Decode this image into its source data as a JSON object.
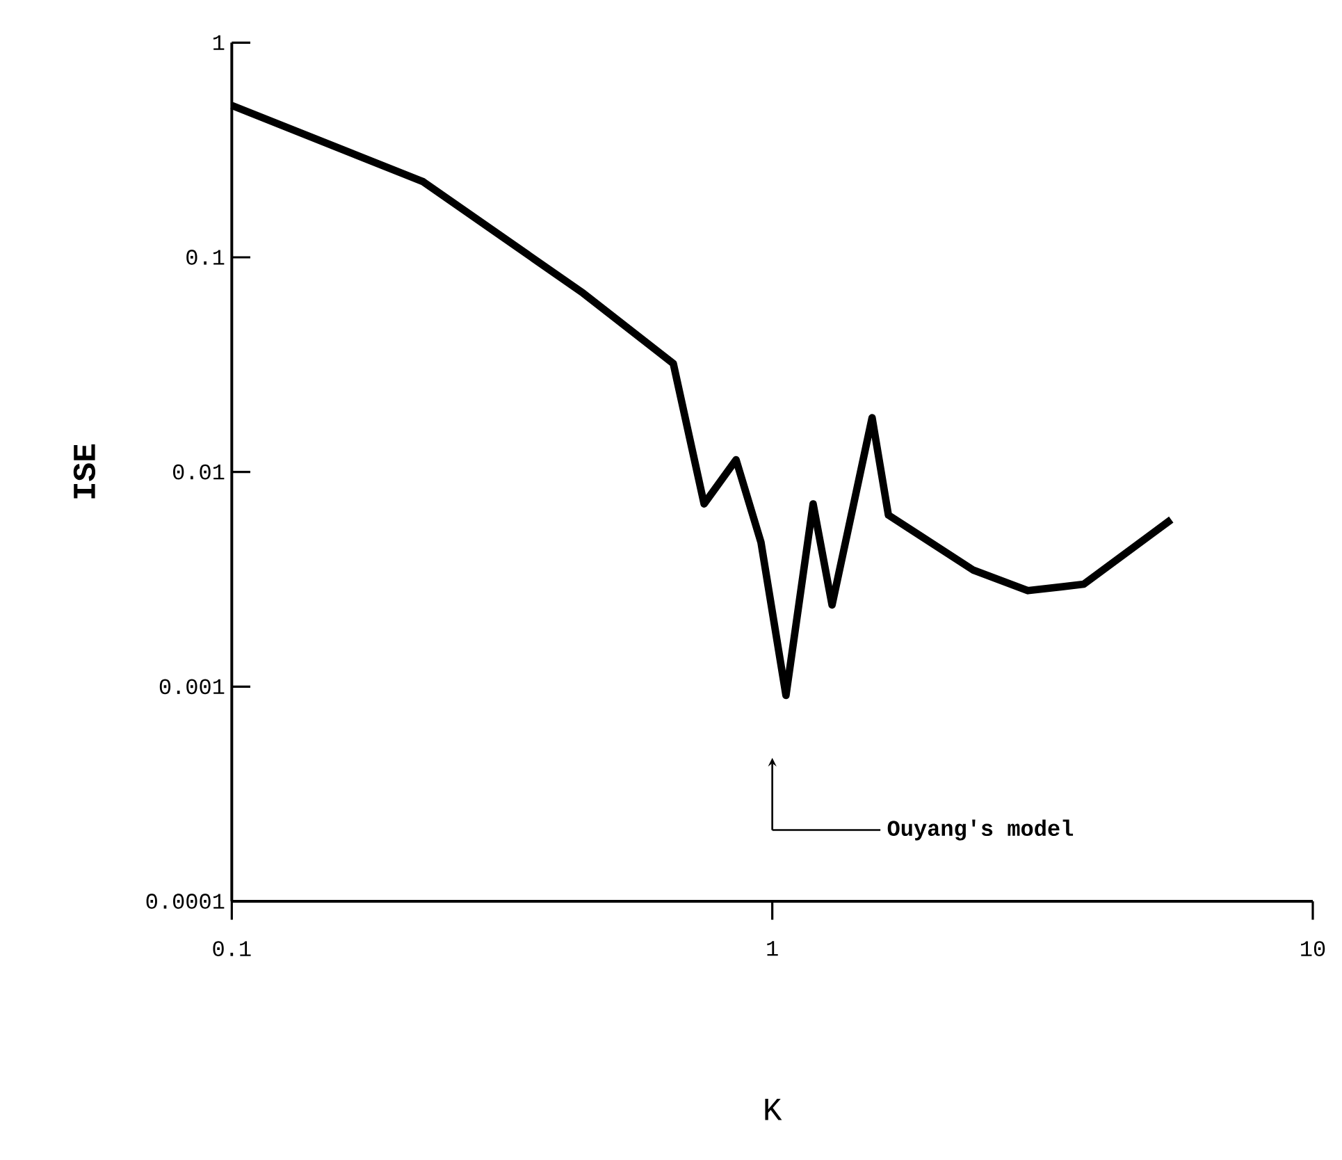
{
  "chart_data": {
    "type": "line",
    "xlabel": "K",
    "ylabel": "ISE",
    "log": "xy",
    "x": [
      0.1,
      0.226,
      0.447,
      0.656,
      0.748,
      0.857,
      0.953,
      1.06,
      1.19,
      1.29,
      1.53,
      1.64,
      2.35,
      2.97,
      3.77,
      5.47
    ],
    "series": [
      {
        "color": "#000000",
        "values": [
          0.51,
          0.225,
          0.068,
          0.032,
          0.0071,
          0.0114,
          0.0047,
          0.00091,
          0.0071,
          0.0024,
          0.0179,
          0.0063,
          0.0035,
          0.0028,
          0.003,
          0.006
        ]
      }
    ],
    "xlim": [
      0.1,
      10
    ],
    "ylim": [
      0.0001,
      1
    ],
    "xticks": [
      0.1,
      1,
      10
    ],
    "yticks": [
      0.0001,
      0.001,
      0.01,
      0.1,
      1
    ],
    "annotations": [
      "Ouyang's model"
    ]
  }
}
